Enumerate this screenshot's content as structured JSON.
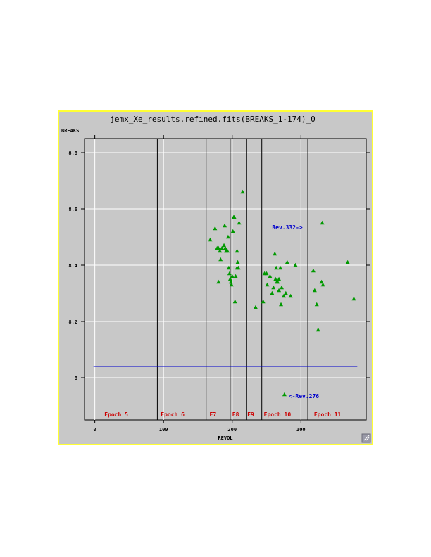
{
  "chart_data": {
    "type": "scatter",
    "title": "jemx_Xe_results.refined.fits(BREAKS_1-174)_0",
    "ylabel": "BREAKS",
    "xlabel": "REVOL",
    "xlim": [
      -15,
      395
    ],
    "ylim": [
      7.85,
      8.85
    ],
    "x_ticks": [
      0,
      100,
      200,
      300
    ],
    "x_tick_labels": [
      "0",
      "100",
      "200",
      "300"
    ],
    "y_ticks": [
      8,
      8.2,
      8.4,
      8.6,
      8.8
    ],
    "y_tick_labels": [
      "8",
      "8.2",
      "8.4",
      "8.6",
      "8.8"
    ],
    "grid": true,
    "grid_color": "#ffffff",
    "plot_background": "#c8c8c8",
    "marker": "triangle",
    "marker_color": "#009900",
    "points": [
      [
        168,
        8.49
      ],
      [
        175,
        8.53
      ],
      [
        178,
        8.46
      ],
      [
        180,
        8.46
      ],
      [
        182,
        8.45
      ],
      [
        183,
        8.42
      ],
      [
        185,
        8.46
      ],
      [
        188,
        8.47
      ],
      [
        189,
        8.54
      ],
      [
        190,
        8.46
      ],
      [
        191,
        8.45
      ],
      [
        193,
        8.45
      ],
      [
        194,
        8.5
      ],
      [
        195,
        8.39
      ],
      [
        196,
        8.37
      ],
      [
        197,
        8.35
      ],
      [
        198,
        8.34
      ],
      [
        199,
        8.33
      ],
      [
        200,
        8.36
      ],
      [
        201,
        8.52
      ],
      [
        202,
        8.57
      ],
      [
        203,
        8.57
      ],
      [
        204,
        8.27
      ],
      [
        205,
        8.36
      ],
      [
        207,
        8.45
      ],
      [
        207,
        8.39
      ],
      [
        208,
        8.41
      ],
      [
        209,
        8.39
      ],
      [
        210,
        8.55
      ],
      [
        215,
        8.66
      ],
      [
        180,
        8.34
      ],
      [
        234,
        8.25
      ],
      [
        245,
        8.27
      ],
      [
        247,
        8.37
      ],
      [
        250,
        8.37
      ],
      [
        251,
        8.33
      ],
      [
        255,
        8.36
      ],
      [
        258,
        8.3
      ],
      [
        260,
        8.32
      ],
      [
        262,
        8.44
      ],
      [
        263,
        8.35
      ],
      [
        264,
        8.39
      ],
      [
        265,
        8.34
      ],
      [
        266,
        8.34
      ],
      [
        268,
        8.31
      ],
      [
        268,
        8.35
      ],
      [
        270,
        8.39
      ],
      [
        271,
        8.26
      ],
      [
        272,
        8.32
      ],
      [
        275,
        8.29
      ],
      [
        278,
        8.3
      ],
      [
        280,
        8.41
      ],
      [
        285,
        8.29
      ],
      [
        292,
        8.4
      ],
      [
        318,
        8.38
      ],
      [
        320,
        8.31
      ],
      [
        323,
        8.26
      ],
      [
        325,
        8.17
      ],
      [
        330,
        8.34
      ],
      [
        331,
        8.55
      ],
      [
        332,
        8.33
      ],
      [
        368,
        8.41
      ],
      [
        377,
        8.28
      ],
      [
        276,
        7.94
      ]
    ],
    "reference_line": {
      "y": 8.04,
      "x_range": [
        -2,
        382
      ],
      "color": "#0000cc"
    },
    "epoch_boundaries": [
      91,
      162,
      197,
      221,
      243,
      310
    ],
    "epoch_labels": [
      {
        "text": "Epoch 5",
        "x": 14,
        "y": 7.87
      },
      {
        "text": "Epoch 6",
        "x": 96,
        "y": 7.87
      },
      {
        "text": "E7",
        "x": 167,
        "y": 7.87
      },
      {
        "text": "E8",
        "x": 200,
        "y": 7.87
      },
      {
        "text": "E9",
        "x": 222,
        "y": 7.87
      },
      {
        "text": "Epoch 10",
        "x": 246,
        "y": 7.87
      },
      {
        "text": "Epoch 11",
        "x": 319,
        "y": 7.87
      }
    ],
    "annotations": [
      {
        "text": "Rev.332->",
        "x": 258,
        "y": 8.535,
        "color": "#0000cc"
      },
      {
        "text": "<-Rev.276",
        "x": 282,
        "y": 7.935,
        "color": "#0000cc"
      }
    ],
    "colors": {
      "frame_border": "#ffff33",
      "epoch_text": "#cc0000",
      "epoch_line": "#000000",
      "axis": "#000000"
    }
  }
}
